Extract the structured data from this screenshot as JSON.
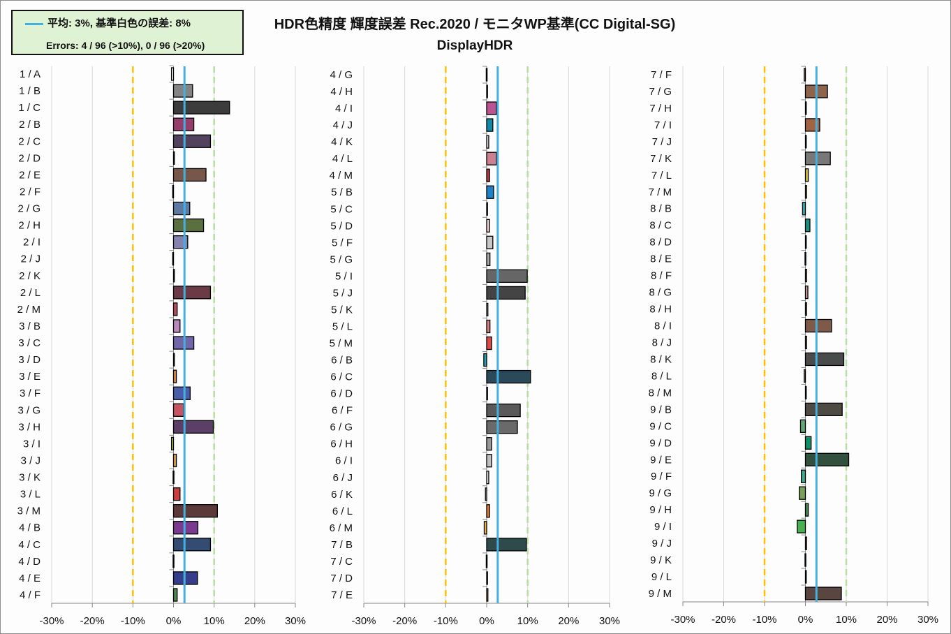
{
  "legend": {
    "mean_label": "平均: 3%, 基準白色の誤差: 8%",
    "errors_label": "Errors: 4 / 96 (>10%),   0 / 96 (>20%)"
  },
  "title": "HDR色精度 輝度誤差 Rec.2020 / モニタWP基準(CC Digital-SG)",
  "subtitle": "DisplayHDR",
  "colors": {
    "mean_line": "#45b0e0",
    "neg_threshold": "#ffc000",
    "pos_threshold": "#b4e0a0",
    "grid": "#d9d9d9"
  },
  "chart_data": {
    "type": "bar",
    "orientation": "horizontal",
    "title": "HDR色精度 輝度誤差 Rec.2020 / モニタWP基準(CC Digital-SG)",
    "subtitle": "DisplayHDR",
    "xlabel": "",
    "ylabel": "",
    "xlim": [
      -0.3,
      0.3
    ],
    "x_ticks": [
      "-30%",
      "-20%",
      "-10%",
      "0%",
      "10%",
      "20%",
      "30%"
    ],
    "grid": true,
    "mean": 0.027,
    "thresholds": [
      -0.1,
      0.1
    ],
    "panels": [
      {
        "categories": [
          "1 / A",
          "1 / B",
          "1 / C",
          "2 / B",
          "2 / C",
          "2 / D",
          "2 / E",
          "2 / F",
          "2 / G",
          "2 / H",
          "2 / I",
          "2 / J",
          "2 / K",
          "2 / L",
          "2 / M",
          "3 / B",
          "3 / C",
          "3 / D",
          "3 / E",
          "3 / F",
          "3 / G",
          "3 / H",
          "3 / I",
          "3 / J",
          "3 / K",
          "3 / L",
          "3 / M",
          "4 / B",
          "4 / C",
          "4 / D",
          "4 / E",
          "4 / F"
        ],
        "values": [
          -0.005,
          0.047,
          0.138,
          0.05,
          0.091,
          0.002,
          0.08,
          -0.002,
          0.04,
          0.074,
          0.035,
          -0.002,
          0.002,
          0.091,
          0.009,
          0.016,
          0.05,
          0.002,
          0.007,
          0.041,
          0.025,
          0.098,
          -0.005,
          0.007,
          -0.001,
          0.016,
          0.108,
          0.06,
          0.091,
          -0.001,
          0.059,
          0.009
        ],
        "colors": [
          "#ffffff",
          "#848484",
          "#3c3c3c",
          "#943e6c",
          "#52425e",
          "#111111",
          "#76574a",
          "#111111",
          "#5e7aa0",
          "#5a703e",
          "#8582b0",
          "#6fb5a8",
          "#111111",
          "#6a3a46",
          "#b84a62",
          "#b889bb",
          "#7166a7",
          "#111111",
          "#dd8a3a",
          "#4a5da8",
          "#c65562",
          "#5b3f66",
          "#a8c050",
          "#e0a040",
          "#111111",
          "#cc3e3e",
          "#5c3a3a",
          "#7a3a8e",
          "#344c72",
          "#111111",
          "#363e8c",
          "#4a8a4a"
        ]
      },
      {
        "categories": [
          "4 / G",
          "4 / H",
          "4 / I",
          "4 / J",
          "4 / K",
          "4 / L",
          "4 / M",
          "5 / B",
          "5 / C",
          "5 / D",
          "5 / F",
          "5 / G",
          "5 / I",
          "5 / J",
          "5 / K",
          "5 / L",
          "5 / M",
          "6 / B",
          "6 / C",
          "6 / D",
          "6 / F",
          "6 / G",
          "6 / H",
          "6 / I",
          "6 / J",
          "6 / K",
          "6 / L",
          "6 / M",
          "7 / B",
          "7 / C",
          "7 / D",
          "7 / E"
        ],
        "values": [
          -0.001,
          0.001,
          0.024,
          0.015,
          0.005,
          0.024,
          0.007,
          0.017,
          0.001,
          0.007,
          0.015,
          0.008,
          0.099,
          0.094,
          0.003,
          0.008,
          0.012,
          -0.007,
          0.107,
          0.001,
          0.082,
          0.075,
          0.012,
          0.012,
          0.005,
          -0.003,
          0.007,
          -0.006,
          0.097,
          -0.001,
          0.002,
          0.003
        ],
        "colors": [
          "#111111",
          "#111111",
          "#bb5592",
          "#0f8aa6",
          "#e6e6ee",
          "#cc8090",
          "#b83848",
          "#1e82c8",
          "#111111",
          "#f0d0d0",
          "#c8c8c8",
          "#a8a8a8",
          "#666666",
          "#444444",
          "#f4f4f4",
          "#d98080",
          "#e04848",
          "#2aa0b0",
          "#2a4a5a",
          "#111111",
          "#5a5a5a",
          "#6a6a6a",
          "#999999",
          "#c0c0c0",
          "#f0f0f0",
          "#e8e8e8",
          "#e87a3a",
          "#f0b840",
          "#2e4a4a",
          "#111111",
          "#111111",
          "#f0c0a0"
        ]
      },
      {
        "categories": [
          "7 / F",
          "7 / G",
          "7 / H",
          "7 / I",
          "7 / J",
          "7 / K",
          "7 / L",
          "7 / M",
          "8 / B",
          "8 / C",
          "8 / D",
          "8 / E",
          "8 / F",
          "8 / G",
          "8 / H",
          "8 / I",
          "8 / J",
          "8 / K",
          "8 / L",
          "8 / M",
          "9 / B",
          "9 / C",
          "9 / D",
          "9 / E",
          "9 / F",
          "9 / G",
          "9 / H",
          "9 / I",
          "9 / J",
          "9 / K",
          "9 / L",
          "9 / M"
        ],
        "values": [
          -0.003,
          0.054,
          0.001,
          0.035,
          0.001,
          0.061,
          0.007,
          0.003,
          -0.007,
          0.011,
          0.001,
          -0.001,
          0.003,
          0.006,
          0.003,
          0.064,
          0.003,
          0.094,
          -0.003,
          0.001,
          0.09,
          -0.012,
          0.014,
          0.106,
          -0.01,
          -0.015,
          0.007,
          -0.02,
          0.003,
          -0.001,
          0.001,
          0.088
        ],
        "colors": [
          "#c8a090",
          "#8e654c",
          "#111111",
          "#a06444",
          "#111111",
          "#787878",
          "#d4c020",
          "#e8c840",
          "#30b0b8",
          "#1a9080",
          "#111111",
          "#111111",
          "#d0a898",
          "#d0a090",
          "#d0a898",
          "#7e5a48",
          "#d0a090",
          "#4a4c4c",
          "#c0a070",
          "#111111",
          "#4e4a44",
          "#60a878",
          "#0e9068",
          "#32503e",
          "#40a890",
          "#78a058",
          "#3a8a48",
          "#48b050",
          "#d0a070",
          "#111111",
          "#111111",
          "#5a4640"
        ]
      }
    ]
  }
}
